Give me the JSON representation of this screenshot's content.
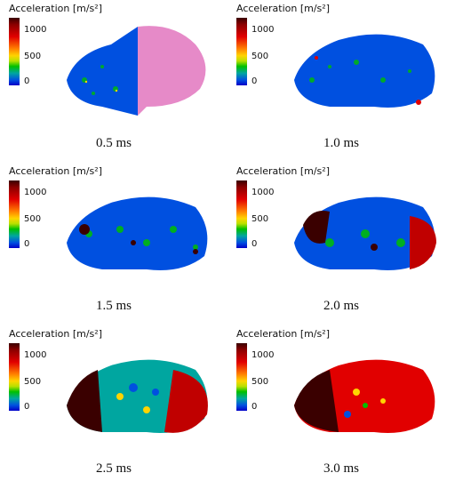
{
  "colorbar": {
    "title": "Acceleration [m/s²]",
    "ticks": [
      "1000",
      "500",
      "0"
    ]
  },
  "panels": [
    {
      "time": "0.5 ms",
      "overlay": "pink"
    },
    {
      "time": "1.0 ms",
      "overlay": "none"
    },
    {
      "time": "1.5 ms",
      "overlay": "none"
    },
    {
      "time": "2.0 ms",
      "overlay": "none"
    },
    {
      "time": "2.5 ms",
      "overlay": "none"
    },
    {
      "time": "3.0 ms",
      "overlay": "none"
    }
  ],
  "colors": {
    "low": "#0000c8",
    "mid": "#00c000",
    "high": "#e10000",
    "max": "#3a0000",
    "tissue": "#e68ac8"
  }
}
